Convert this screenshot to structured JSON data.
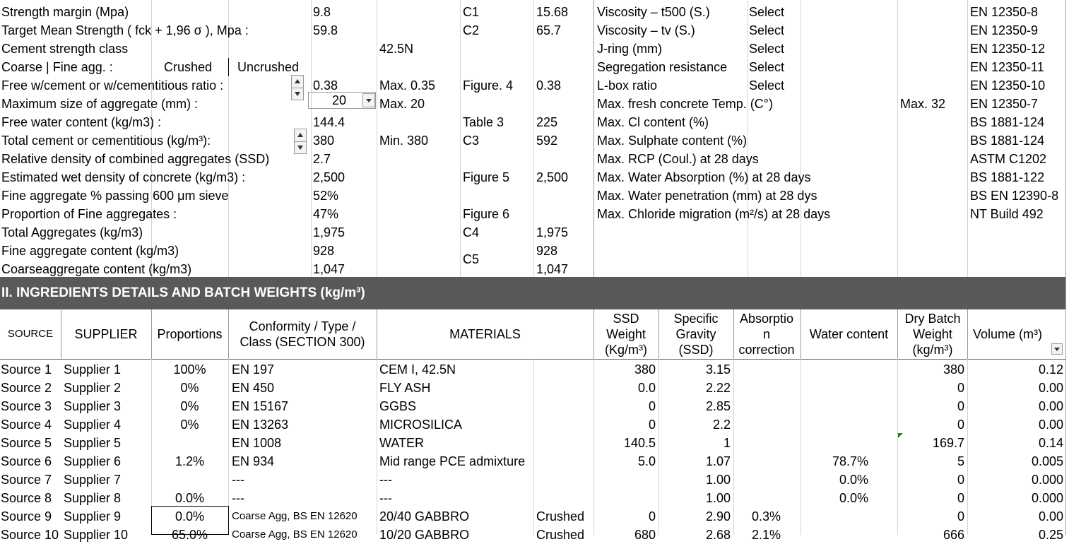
{
  "params": {
    "rows": [
      {
        "label": "Strength margin (Mpa)",
        "value": "9.8",
        "note": "",
        "ref": "C1",
        "refval": "15.68"
      },
      {
        "label": "Target Mean Strength ( fck + 1,96 σ ), Mpa :",
        "value": "59.8",
        "note": "",
        "ref": "C2",
        "refval": "65.7"
      },
      {
        "label": "Cement strength class",
        "value": "",
        "note": "42.5N",
        "ref": "",
        "refval": ""
      },
      {
        "label": "Coarse  |  Fine agg. :",
        "value": "",
        "note": "",
        "ref": "",
        "refval": ""
      },
      {
        "label": "Free w/cement or w/cementitious ratio :",
        "value": "0.38",
        "note": "Max. 0.35",
        "ref": "Figure. 4",
        "refval": "0.38"
      },
      {
        "label": "Maximum size of aggregate (mm) :",
        "value": "20",
        "note": "Max. 20",
        "ref": "",
        "refval": ""
      },
      {
        "label": "Free water content (kg/m3) :",
        "value": "144.4",
        "note": "",
        "ref": "Table 3",
        "refval": "225"
      },
      {
        "label": "Total cement or cementitious (kg/m³):",
        "value": "380",
        "note": "Min. 380",
        "ref": "C3",
        "refval": "592"
      },
      {
        "label": "Relative density of combined aggregates (SSD)",
        "value": "2.7",
        "note": "",
        "ref": "",
        "refval": ""
      },
      {
        "label": "Estimated wet density of concrete (kg/m3) :",
        "value": "2,500",
        "note": "",
        "ref": "Figure 5",
        "refval": "2,500"
      },
      {
        "label": "Fine aggregate % passing 600 μm sieve",
        "value": "52%",
        "note": "",
        "ref": "",
        "refval": ""
      },
      {
        "label": "Proportion of Fine aggregates :",
        "value": "47%",
        "note": "",
        "ref": "Figure 6",
        "refval": ""
      },
      {
        "label": "Total Aggregates (kg/m3)",
        "value": "1,975",
        "note": "",
        "ref": "C4",
        "refval": "1,975"
      },
      {
        "label": "Fine aggregate content (kg/m3)",
        "value": "928",
        "note": "",
        "ref": "C5",
        "refval": "928"
      },
      {
        "label": "Coarseaggregate content (kg/m3)",
        "value": "1,047",
        "note": "",
        "ref": "",
        "refval": "1,047"
      }
    ],
    "coarse_fine": {
      "crushed": "Crushed",
      "uncrushed": "Uncrushed"
    }
  },
  "tests": [
    {
      "label": "Viscosity  – t500 (S.)",
      "select": "Select",
      "max": "",
      "std": "EN 12350-8"
    },
    {
      "label": "Viscosity  – tv (S.)",
      "select": "Select",
      "max": "",
      "std": "EN 12350-9"
    },
    {
      "label": "J-ring (mm)",
      "select": "Select",
      "max": "",
      "std": "EN 12350-12"
    },
    {
      "label": "Segregation resistance",
      "select": "Select",
      "max": "",
      "std": "EN 12350-11"
    },
    {
      "label": "L-box ratio",
      "select": "Select",
      "max": "",
      "std": "EN 12350-10"
    },
    {
      "label": "Max. fresh concrete Temp. (C°)",
      "select": "",
      "max": "Max. 32",
      "std": "EN 12350-7"
    },
    {
      "label": "Max. Cl content (%)",
      "select": "",
      "max": "",
      "std": "BS 1881-124"
    },
    {
      "label": "Max. Sulphate content (%)",
      "select": "",
      "max": "",
      "std": "BS 1881-124"
    },
    {
      "label": "Max. RCP (Coul.) at 28 days",
      "select": "",
      "max": "",
      "std": "ASTM C1202"
    },
    {
      "label": "Max. Water Absorption (%) at 28 days",
      "select": "",
      "max": "",
      "std": "BS 1881-122"
    },
    {
      "label": "Max. Water penetration (mm) at 28 dys",
      "select": "",
      "max": "",
      "std": "BS EN 12390-8"
    },
    {
      "label": "Max. Chloride migration (m²/s) at 28 days",
      "select": "",
      "max": "",
      "std": "NT Build 492"
    }
  ],
  "section2": {
    "title": "II. INGREDIENTS DETAILS AND BATCH WEIGHTS (kg/m³)",
    "headers": {
      "source": "SOURCE",
      "supplier": "SUPPLIER",
      "proportions": "Proportions",
      "conformity": "Conformity / Type / Class (SECTION 300)",
      "materials": "MATERIALS",
      "ssd": "SSD Weight (Kg/m³)",
      "sg": "Specific Gravity (SSD)",
      "abs": "Absorptio n correction",
      "water": "Water content",
      "dry": "Dry Batch Weight (kg/m³)",
      "vol": "Volume (m³)"
    },
    "rows": [
      {
        "source": "Source 1",
        "supplier": "Supplier 1",
        "prop": "100%",
        "conf": "EN 197",
        "mat": "CEM I, 42.5N",
        "extra": "",
        "ssd": "380",
        "sg": "3.15",
        "abs": "",
        "water": "",
        "dry": "380",
        "vol": "0.12"
      },
      {
        "source": "Source 2",
        "supplier": "Supplier 2",
        "prop": "0%",
        "conf": "EN 450",
        "mat": "FLY ASH",
        "extra": "",
        "ssd": "0.0",
        "sg": "2.22",
        "abs": "",
        "water": "",
        "dry": "0",
        "vol": "0.00"
      },
      {
        "source": "Source 3",
        "supplier": "Supplier 3",
        "prop": "0%",
        "conf": "EN 15167",
        "mat": "GGBS",
        "extra": "",
        "ssd": "0",
        "sg": "2.85",
        "abs": "",
        "water": "",
        "dry": "0",
        "vol": "0.00"
      },
      {
        "source": "Source 4",
        "supplier": "Supplier 4",
        "prop": "0%",
        "conf": "EN 13263",
        "mat": "MICROSILICA",
        "extra": "",
        "ssd": "0",
        "sg": "2.2",
        "abs": "",
        "water": "",
        "dry": "0",
        "vol": "0.00"
      },
      {
        "source": "Source 5",
        "supplier": "Supplier 5",
        "prop": "",
        "conf": "EN 1008",
        "mat": "WATER",
        "extra": "",
        "ssd": "140.5",
        "sg": "1",
        "abs": "",
        "water": "",
        "dry": "169.7",
        "vol": "0.14"
      },
      {
        "source": "Source 6",
        "supplier": "Supplier 6",
        "prop": "1.2%",
        "conf": "EN 934",
        "mat": "Mid range PCE admixture",
        "extra": "",
        "ssd": "5.0",
        "sg": "1.07",
        "abs": "",
        "water": "78.7%",
        "dry": "5",
        "vol": "0.005"
      },
      {
        "source": "Source 7",
        "supplier": "Supplier 7",
        "prop": "",
        "conf": "---",
        "mat": "---",
        "extra": "",
        "ssd": "",
        "sg": "1.00",
        "abs": "",
        "water": "0.0%",
        "dry": "0",
        "vol": "0.000"
      },
      {
        "source": "Source 8",
        "supplier": "Supplier 8",
        "prop": "0.0%",
        "conf": "---",
        "mat": "---",
        "extra": "",
        "ssd": "",
        "sg": "1.00",
        "abs": "",
        "water": "0.0%",
        "dry": "0",
        "vol": "0.000"
      },
      {
        "source": "Source 9",
        "supplier": "Supplier 9",
        "prop": "0.0%",
        "conf": "Coarse Agg, BS EN 12620",
        "mat": "20/40 GABBRO",
        "extra": "Crushed",
        "ssd": "0",
        "sg": "2.90",
        "abs": "0.3%",
        "water": "",
        "dry": "0",
        "vol": "0.00"
      },
      {
        "source": "Source 10",
        "supplier": "Supplier 10",
        "prop": "65.0%",
        "conf": "Coarse Agg, BS EN 12620",
        "mat": "10/20 GABBRO",
        "extra": "Crushed",
        "ssd": "680",
        "sg": "2.68",
        "abs": "2.1%",
        "water": "",
        "dry": "666",
        "vol": "0.25"
      }
    ]
  }
}
